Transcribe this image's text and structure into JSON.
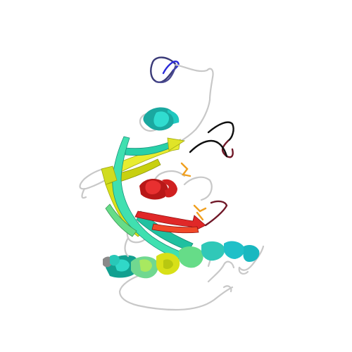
{
  "palette": {
    "blue": "#2a2ad8",
    "navy": "#3a3a78",
    "cyan": "#20c8c0",
    "teal": "#28d0a8",
    "green": "#7ee07a",
    "yellow": "#d8e018",
    "orange": "#f0a020",
    "red": "#e02828",
    "darkred": "#701828",
    "coil": "#c8c8c8"
  }
}
